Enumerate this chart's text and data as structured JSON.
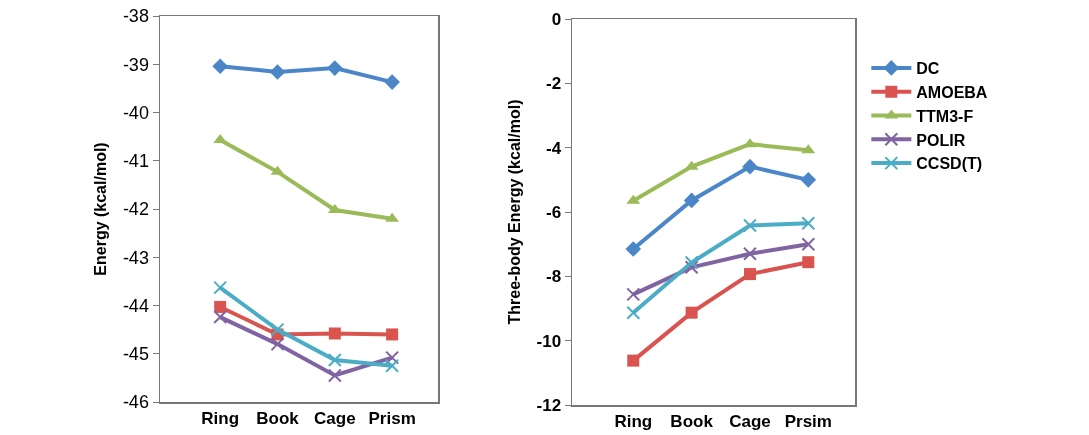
{
  "chart_data": [
    {
      "type": "line",
      "ylabel": "Energy (kcal/mol)",
      "categories": [
        "Ring",
        "Book",
        "Cage",
        "Prism"
      ],
      "ylim": [
        -46,
        -38
      ],
      "yticks": [
        -46,
        -45,
        -44,
        -43,
        -42,
        -41,
        -40,
        -39,
        -38
      ],
      "grid": false,
      "legend": false,
      "series": [
        {
          "color": "#4a86c8",
          "marker": "diamond",
          "values": [
            -39.04,
            -39.16,
            -39.08,
            -39.37
          ]
        },
        {
          "color": "#d9534f",
          "marker": "square",
          "values": [
            -44.03,
            -44.6,
            -44.58,
            -44.6
          ]
        },
        {
          "color": "#9bbb59",
          "marker": "triangle",
          "values": [
            -40.57,
            -41.23,
            -42.02,
            -42.2
          ]
        },
        {
          "color": "#8064a2",
          "marker": "cross",
          "values": [
            -44.24,
            -44.8,
            -45.45,
            -45.08
          ]
        },
        {
          "color": "#4bacc6",
          "marker": "cross",
          "values": [
            -43.63,
            -44.5,
            -45.13,
            -45.25
          ]
        }
      ]
    },
    {
      "type": "line",
      "ylabel": "Three-body Energy (kcal/mol)",
      "categories": [
        "Ring",
        "Book",
        "Cage",
        "Prsim"
      ],
      "ylim": [
        -12,
        0
      ],
      "yticks": [
        -12,
        -10,
        -8,
        -6,
        -4,
        -2,
        0
      ],
      "grid": false,
      "legend": "right",
      "series": [
        {
          "name": "DC",
          "color": "#4a86c8",
          "marker": "diamond",
          "values": [
            -7.15,
            -5.64,
            -4.59,
            -5.0
          ]
        },
        {
          "name": "AMOEBA",
          "color": "#d9534f",
          "marker": "square",
          "values": [
            -10.62,
            -9.13,
            -7.93,
            -7.56
          ]
        },
        {
          "name": "TTM3-F",
          "color": "#9bbb59",
          "marker": "triangle",
          "values": [
            -5.65,
            -4.59,
            -3.89,
            -4.08
          ]
        },
        {
          "name": "POLIR",
          "color": "#8064a2",
          "marker": "cross",
          "values": [
            -8.56,
            -7.72,
            -7.3,
            -7.0
          ]
        },
        {
          "name": "CCSD(T)",
          "color": "#4bacc6",
          "marker": "cross",
          "values": [
            -9.13,
            -7.57,
            -6.42,
            -6.35
          ]
        }
      ]
    }
  ]
}
